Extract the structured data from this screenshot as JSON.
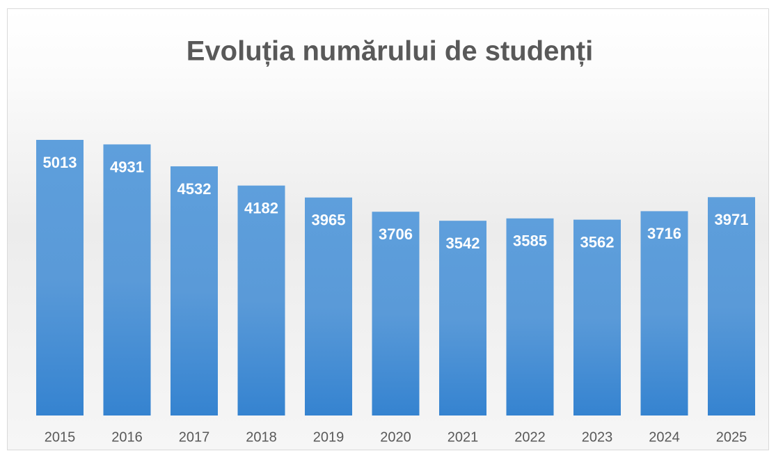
{
  "chart_data": {
    "type": "bar",
    "title": "Evoluția numărului de studenți",
    "categories": [
      "2015",
      "2016",
      "2017",
      "2018",
      "2019",
      "2020",
      "2021",
      "2022",
      "2023",
      "2024",
      "2025"
    ],
    "values": [
      5013,
      4931,
      4532,
      4182,
      3965,
      3706,
      3542,
      3585,
      3562,
      3716,
      3971
    ],
    "color": "#4a8fd6",
    "ylim": [
      0,
      6000
    ]
  }
}
